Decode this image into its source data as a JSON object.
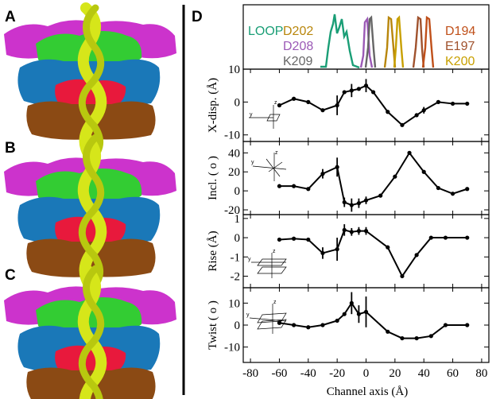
{
  "panels": {
    "a": "A",
    "b": "B",
    "c": "C",
    "d": "D"
  },
  "legend": {
    "loop": {
      "text": "LOOP",
      "color": "#1a9e76"
    },
    "d202": {
      "text": "D202",
      "color": "#b8860b"
    },
    "d208": {
      "text": "D208",
      "color": "#9b59b6"
    },
    "k209": {
      "text": "K209",
      "color": "#666666"
    },
    "d194": {
      "text": "D194",
      "color": "#c0501a"
    },
    "e197": {
      "text": "E197",
      "color": "#a0522d"
    },
    "k200": {
      "text": "K200",
      "color": "#c8a000"
    }
  },
  "chart_data": [
    {
      "type": "line",
      "xlabel": "Channel axis (Å)",
      "ylabel": "X-disp. (Å)",
      "xlim": [
        -85,
        85
      ],
      "ylim": [
        -12,
        10
      ],
      "yticks": [
        10,
        0,
        -10
      ],
      "x": [
        -60,
        -50,
        -40,
        -30,
        -20,
        -15,
        -10,
        -5,
        0,
        5,
        15,
        25,
        35,
        40,
        50,
        60,
        70
      ],
      "y": [
        -1,
        1,
        0,
        -2.5,
        -1,
        3,
        3.5,
        4,
        5,
        3,
        -3,
        -7,
        -4,
        -2.5,
        0,
        -0.5,
        -0.5
      ],
      "err": [
        0,
        0,
        0,
        0,
        3,
        0,
        2,
        0,
        2,
        0,
        0,
        0,
        0,
        1,
        0,
        0,
        0
      ]
    },
    {
      "type": "line",
      "ylabel": "Incl. ( o )",
      "xlim": [
        -85,
        85
      ],
      "ylim": [
        -25,
        52
      ],
      "yticks": [
        40,
        20,
        0,
        -20
      ],
      "x": [
        -60,
        -50,
        -40,
        -30,
        -20,
        -15,
        -10,
        -5,
        0,
        10,
        20,
        30,
        40,
        50,
        60,
        70
      ],
      "y": [
        5,
        5,
        2,
        18,
        25,
        -12,
        -15,
        -13,
        -10,
        -5,
        15,
        40,
        20,
        3,
        -3,
        2
      ],
      "err": [
        0,
        0,
        0,
        5,
        10,
        5,
        7,
        5,
        4,
        0,
        0,
        0,
        0,
        0,
        0,
        0
      ]
    },
    {
      "type": "line",
      "ylabel": "Rise (Å)",
      "xlim": [
        -85,
        85
      ],
      "ylim": [
        -2.6,
        1.2
      ],
      "yticks": [
        1,
        0,
        -1,
        -2
      ],
      "x": [
        -60,
        -50,
        -40,
        -30,
        -20,
        -15,
        -10,
        -5,
        0,
        15,
        25,
        35,
        45,
        55,
        70
      ],
      "y": [
        -0.1,
        -0.05,
        -0.1,
        -0.8,
        -0.6,
        0.4,
        0.3,
        0.35,
        0.35,
        -0.5,
        -2,
        -0.9,
        0,
        0,
        0
      ],
      "err": [
        0,
        0,
        0,
        0.3,
        0.6,
        0.3,
        0.2,
        0.2,
        0.2,
        0,
        0,
        0,
        0,
        0,
        0
      ]
    },
    {
      "type": "line",
      "ylabel": "Twist ( o )",
      "xlim": [
        -85,
        85
      ],
      "ylim": [
        -17,
        17
      ],
      "yticks": [
        10,
        0,
        -10
      ],
      "x": [
        -60,
        -50,
        -40,
        -30,
        -20,
        -15,
        -10,
        -5,
        0,
        15,
        25,
        35,
        45,
        55,
        70
      ],
      "y": [
        1,
        0,
        -1,
        0,
        2,
        5,
        10,
        5,
        6,
        -3,
        -6,
        -6,
        -5,
        0,
        0
      ],
      "err": [
        0,
        0,
        0,
        0,
        0,
        0,
        5,
        4,
        7,
        0,
        0,
        0,
        0,
        0,
        0
      ]
    }
  ],
  "xticks": [
    -80,
    -60,
    -40,
    -20,
    0,
    20,
    40,
    60,
    80
  ]
}
